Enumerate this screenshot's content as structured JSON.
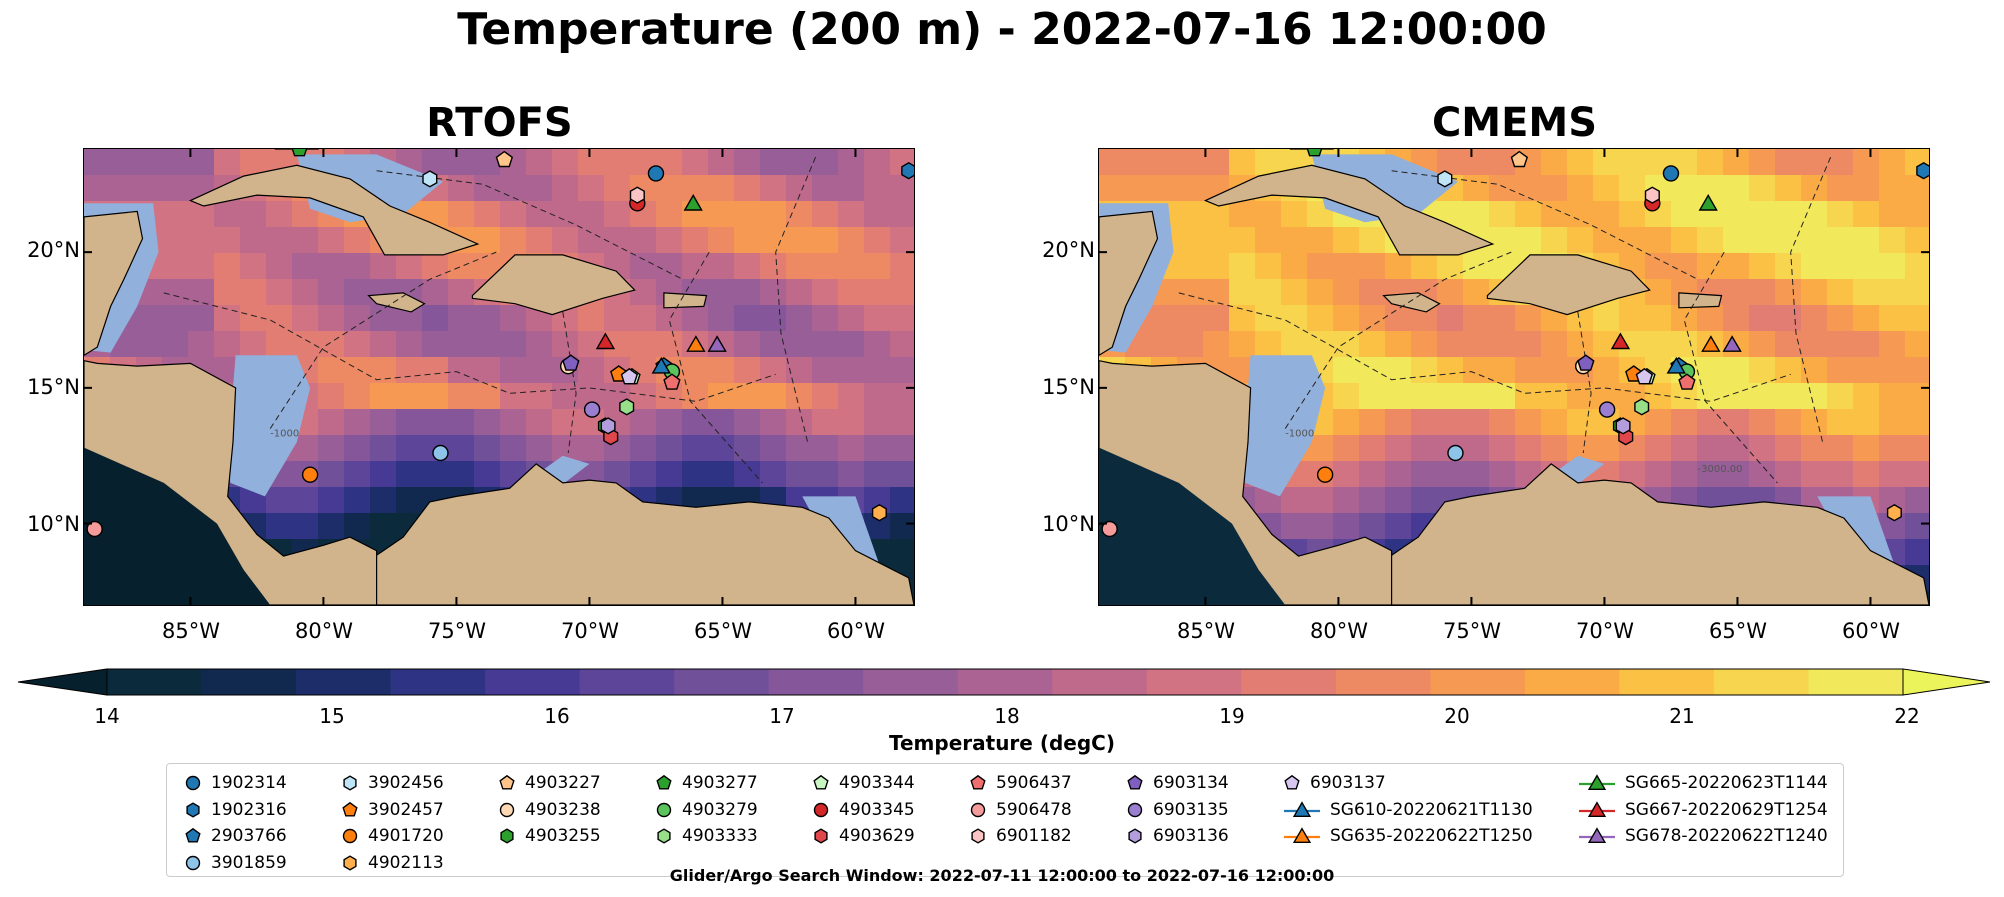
{
  "figure": {
    "title": "Temperature (200 m) - 2022-07-16 12:00:00",
    "footnote": "Glider/Argo Search Window: 2022-07-11 12:00:00 to 2022-07-16 12:00:00"
  },
  "panels": [
    {
      "title": "RTOFS",
      "theme": "cool"
    },
    {
      "title": "CMEMS",
      "theme": "warm"
    }
  ],
  "axes": {
    "lat_ticks": [
      "20°N",
      "15°N",
      "10°N"
    ],
    "lon_ticks": [
      "85°W",
      "80°W",
      "75°W",
      "70°W",
      "65°W",
      "60°W"
    ],
    "lat_range": [
      7,
      23.8
    ],
    "lon_range": [
      -89,
      -57.8
    ],
    "contour_labels": [
      "-1000",
      "-3000.00"
    ]
  },
  "colorbar": {
    "label": "Temperature (degC)",
    "ticks": [
      "14",
      "15",
      "16",
      "17",
      "18",
      "19",
      "20",
      "21",
      "22"
    ],
    "range": [
      14,
      22
    ],
    "colors": [
      "#0b2a3c",
      "#11294f",
      "#1c2d6a",
      "#2f3384",
      "#463a95",
      "#5d4699",
      "#71509a",
      "#85579a",
      "#985e98",
      "#ab6393",
      "#bf6a8b",
      "#d17382",
      "#e27d73",
      "#ee8a63",
      "#f69952",
      "#faab46",
      "#fbc145",
      "#f7d54e",
      "#f2e85b"
    ],
    "extend_low": "#06202d",
    "extend_high": "#ebf45a"
  },
  "legend": {
    "columns": [
      [
        {
          "label": "1902314",
          "marker": "circle",
          "color": "#1f77b4"
        },
        {
          "label": "1902316",
          "marker": "hexagon",
          "color": "#1f77b4"
        },
        {
          "label": "2903766",
          "marker": "pentagon",
          "color": "#1f77b4"
        },
        {
          "label": "3901859",
          "marker": "circle",
          "color": "#8ec3ea"
        }
      ],
      [
        {
          "label": "3902456",
          "marker": "hexagon",
          "color": "#bfe3f7"
        },
        {
          "label": "3902457",
          "marker": "pentagon",
          "color": "#ff7f0e"
        },
        {
          "label": "4901720",
          "marker": "circle",
          "color": "#ff7f0e"
        },
        {
          "label": "4902113",
          "marker": "hexagon",
          "color": "#ffb04d"
        }
      ],
      [
        {
          "label": "4903227",
          "marker": "pentagon",
          "color": "#ffc48a"
        },
        {
          "label": "4903238",
          "marker": "circle",
          "color": "#ffd9b3"
        },
        {
          "label": "4903255",
          "marker": "hexagon",
          "color": "#2ca02c"
        }
      ],
      [
        {
          "label": "4903277",
          "marker": "pentagon",
          "color": "#2ca02c"
        },
        {
          "label": "4903279",
          "marker": "circle",
          "color": "#5cc45c"
        },
        {
          "label": "4903333",
          "marker": "hexagon",
          "color": "#98df8a"
        }
      ],
      [
        {
          "label": "4903344",
          "marker": "pentagon",
          "color": "#c9f5c2"
        },
        {
          "label": "4903345",
          "marker": "circle",
          "color": "#d62728"
        },
        {
          "label": "4903629",
          "marker": "hexagon",
          "color": "#e0474c"
        }
      ],
      [
        {
          "label": "5906437",
          "marker": "pentagon",
          "color": "#ef6f6f"
        },
        {
          "label": "5906478",
          "marker": "circle",
          "color": "#f59b9b"
        },
        {
          "label": "6901182",
          "marker": "hexagon",
          "color": "#fbc4c4"
        }
      ],
      [
        {
          "label": "6903134",
          "marker": "pentagon",
          "color": "#7f5fbf"
        },
        {
          "label": "6903135",
          "marker": "circle",
          "color": "#9a7fd1"
        },
        {
          "label": "6903136",
          "marker": "hexagon",
          "color": "#b39ddd"
        }
      ],
      [
        {
          "label": "6903137",
          "marker": "pentagon",
          "color": "#d6c6f0"
        },
        {
          "label": "SG610-20220621T1130",
          "marker": "triangle-line",
          "color": "#1f77b4"
        },
        {
          "label": "SG635-20220622T1250",
          "marker": "triangle-line",
          "color": "#ff7f0e"
        }
      ],
      [
        {
          "label": "SG665-20220623T1144",
          "marker": "triangle-line",
          "color": "#2ca02c"
        },
        {
          "label": "SG667-20220629T1254",
          "marker": "triangle-line",
          "color": "#d62728"
        },
        {
          "label": "SG678-20220622T1240",
          "marker": "triangle-line",
          "color": "#9467bd"
        }
      ]
    ]
  },
  "markers": [
    {
      "id": "1902314",
      "lon": -67.5,
      "lat": 22.9,
      "marker": "circle",
      "color": "#1f77b4"
    },
    {
      "id": "1902316",
      "lon": -58.0,
      "lat": 23.0,
      "marker": "hexagon",
      "color": "#1f77b4"
    },
    {
      "id": "2903766",
      "lon": -67.2,
      "lat": 15.8,
      "marker": "pentagon",
      "color": "#1f77b4"
    },
    {
      "id": "3901859",
      "lon": -75.6,
      "lat": 12.6,
      "marker": "circle",
      "color": "#8ec3ea"
    },
    {
      "id": "3902456",
      "lon": -76.0,
      "lat": 22.7,
      "marker": "hexagon",
      "color": "#bfe3f7"
    },
    {
      "id": "3902457",
      "lon": -68.9,
      "lat": 15.5,
      "marker": "pentagon",
      "color": "#ff7f0e"
    },
    {
      "id": "4901720",
      "lon": -80.5,
      "lat": 11.8,
      "marker": "circle",
      "color": "#ff7f0e"
    },
    {
      "id": "4902113",
      "lon": -59.1,
      "lat": 10.4,
      "marker": "hexagon",
      "color": "#ffb04d"
    },
    {
      "id": "4903227",
      "lon": -73.2,
      "lat": 23.4,
      "marker": "pentagon",
      "color": "#ffc48a"
    },
    {
      "id": "4903238",
      "lon": -70.8,
      "lat": 15.8,
      "marker": "circle",
      "color": "#ffd9b3"
    },
    {
      "id": "4903255",
      "lon": -69.4,
      "lat": 13.6,
      "marker": "hexagon",
      "color": "#2ca02c"
    },
    {
      "id": "4903277",
      "lon": -80.9,
      "lat": 23.8,
      "marker": "pentagon",
      "color": "#2ca02c"
    },
    {
      "id": "4903279",
      "lon": -66.9,
      "lat": 15.6,
      "marker": "circle",
      "color": "#5cc45c"
    },
    {
      "id": "4903333",
      "lon": -68.6,
      "lat": 14.3,
      "marker": "hexagon",
      "color": "#98df8a"
    },
    {
      "id": "4903344",
      "lon": -68.4,
      "lat": 15.4,
      "marker": "pentagon",
      "color": "#c9f5c2"
    },
    {
      "id": "4903345",
      "lon": -68.2,
      "lat": 21.8,
      "marker": "circle",
      "color": "#d62728"
    },
    {
      "id": "4903629",
      "lon": -69.2,
      "lat": 13.2,
      "marker": "hexagon",
      "color": "#e0474c"
    },
    {
      "id": "5906437",
      "lon": -66.9,
      "lat": 15.2,
      "marker": "pentagon",
      "color": "#ef6f6f"
    },
    {
      "id": "5906478",
      "lon": -88.6,
      "lat": 9.8,
      "marker": "circle",
      "color": "#f59b9b"
    },
    {
      "id": "6901182",
      "lon": -68.2,
      "lat": 22.1,
      "marker": "hexagon",
      "color": "#fbc4c4"
    },
    {
      "id": "6903134",
      "lon": -70.7,
      "lat": 15.9,
      "marker": "pentagon",
      "color": "#7f5fbf"
    },
    {
      "id": "6903135",
      "lon": -69.9,
      "lat": 14.2,
      "marker": "circle",
      "color": "#9a7fd1"
    },
    {
      "id": "6903136",
      "lon": -69.3,
      "lat": 13.6,
      "marker": "hexagon",
      "color": "#b39ddd"
    },
    {
      "id": "6903137",
      "lon": -68.5,
      "lat": 15.4,
      "marker": "pentagon",
      "color": "#d6c6f0"
    },
    {
      "id": "SG610-20220621T1130",
      "lon": -67.3,
      "lat": 15.8,
      "marker": "triangle",
      "color": "#1f77b4"
    },
    {
      "id": "SG635-20220622T1250",
      "lon": -66.0,
      "lat": 16.6,
      "marker": "triangle",
      "color": "#ff7f0e"
    },
    {
      "id": "SG665-20220623T1144",
      "lon": -66.1,
      "lat": 21.8,
      "marker": "triangle",
      "color": "#2ca02c"
    },
    {
      "id": "SG667-20220629T1254",
      "lon": -69.4,
      "lat": 16.7,
      "marker": "triangle",
      "color": "#d62728"
    },
    {
      "id": "SG678-20220622T1240",
      "lon": -65.2,
      "lat": 16.6,
      "marker": "triangle",
      "color": "#9467bd"
    }
  ]
}
